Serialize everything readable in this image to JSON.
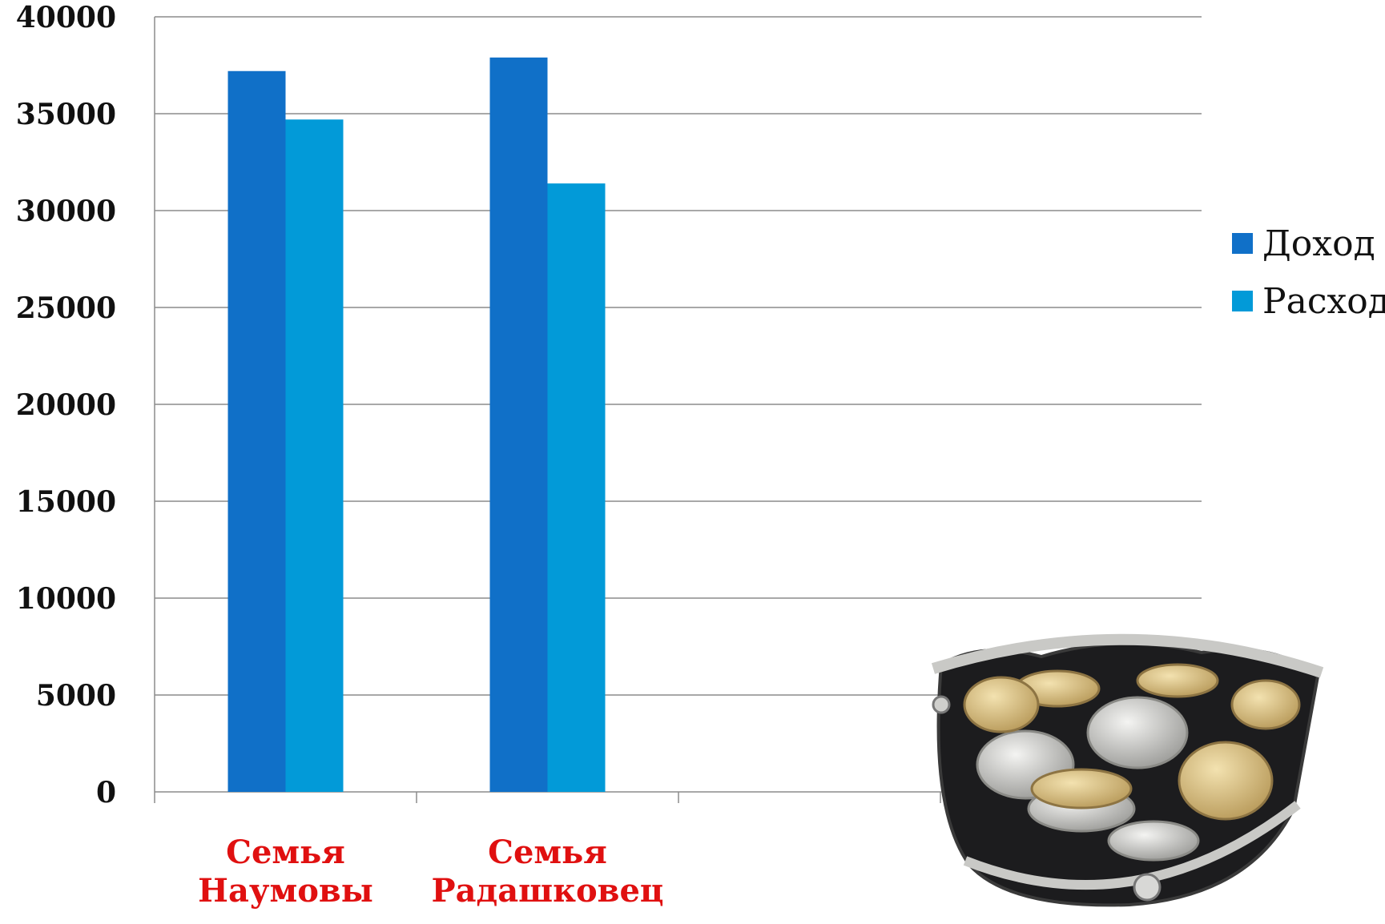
{
  "chart_data": {
    "type": "bar",
    "categories": [
      "Семья Наумовы",
      "Семья Радашковец",
      ""
    ],
    "series": [
      {
        "name": "Доход",
        "values": [
          37200,
          37900,
          null
        ],
        "color": "#1070c8"
      },
      {
        "name": "Расход",
        "values": [
          34700,
          31400,
          null
        ],
        "color": "#029ad8"
      }
    ],
    "ylim": [
      0,
      40000
    ],
    "yticks": [
      0,
      5000,
      10000,
      15000,
      20000,
      25000,
      30000,
      35000,
      40000
    ],
    "grid": true,
    "legend_position": "right",
    "category_label_color": "#e01010",
    "decoration": "coin-purse-photo"
  }
}
